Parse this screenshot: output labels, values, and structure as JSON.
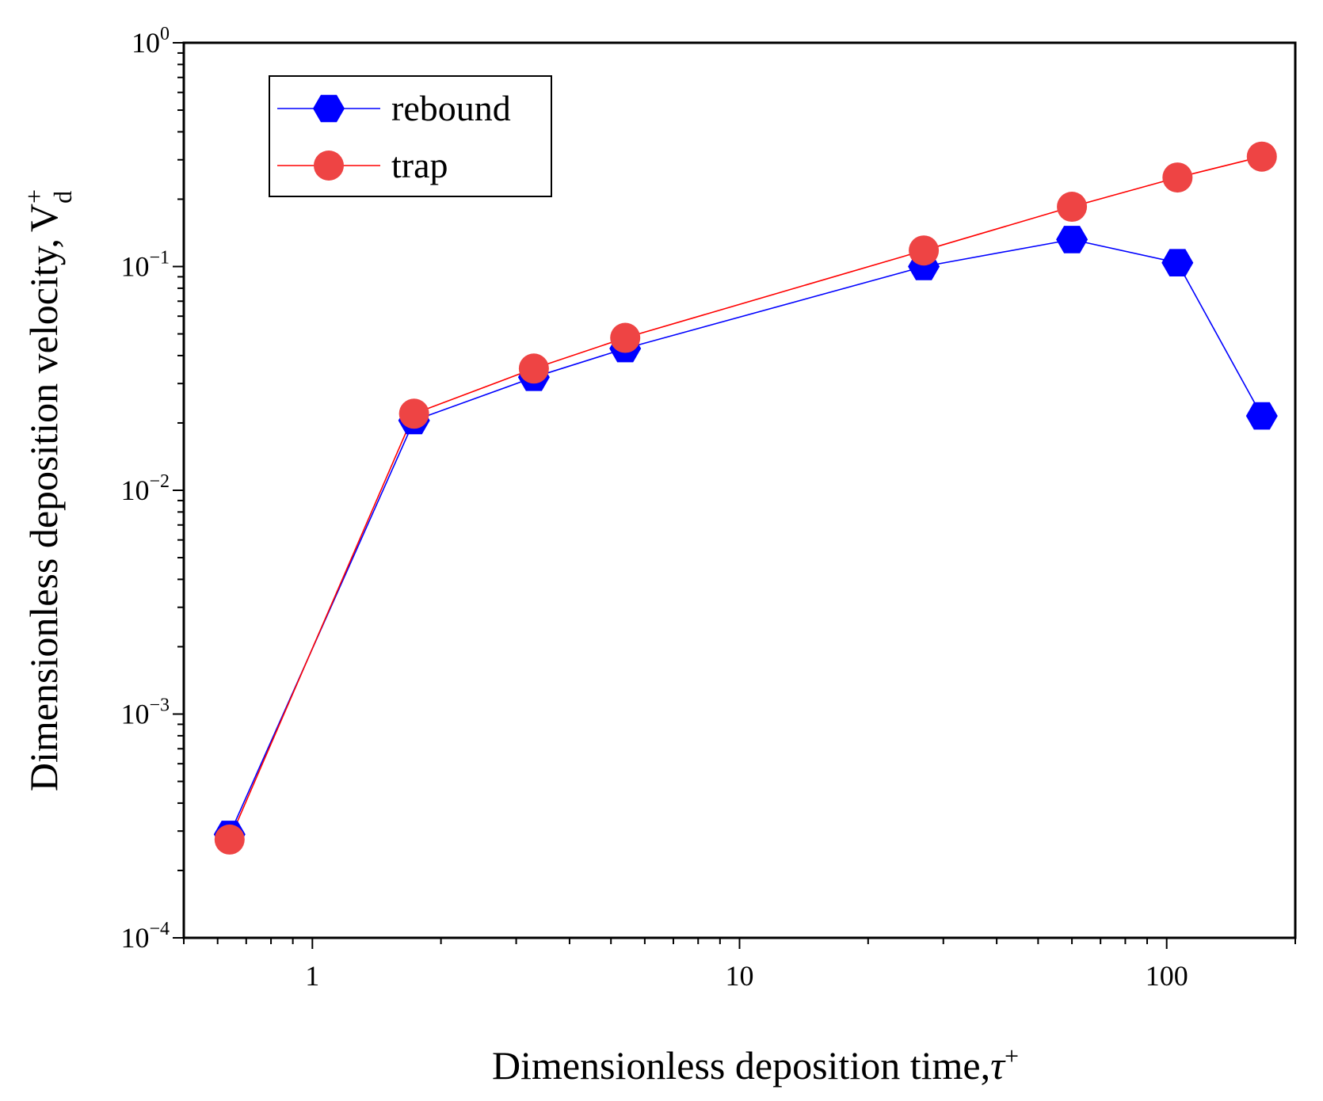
{
  "chart_data": {
    "type": "line",
    "xscale": "log",
    "yscale": "log",
    "xlim": [
      0.5,
      200
    ],
    "ylim": [
      0.0001,
      1
    ],
    "xlabel": "Dimensionless deposition time,",
    "xlabel_symbol": "τ",
    "xlabel_sup": "+",
    "ylabel": "Dimensionless deposition velocity,",
    "ylabel_symbol": "V",
    "ylabel_sup": "+",
    "ylabel_sub": "d",
    "x_ticks": [
      {
        "value": 1,
        "label": "1"
      },
      {
        "value": 10,
        "label": "10"
      },
      {
        "value": 100,
        "label": "100"
      }
    ],
    "y_ticks": [
      {
        "value": 0.0001,
        "base": "10",
        "exp": "−4"
      },
      {
        "value": 0.001,
        "base": "10",
        "exp": "−3"
      },
      {
        "value": 0.01,
        "base": "10",
        "exp": "−2"
      },
      {
        "value": 0.1,
        "base": "10",
        "exp": "−1"
      },
      {
        "value": 1,
        "base": "10",
        "exp": "0"
      }
    ],
    "legend_position": "top-left",
    "series": [
      {
        "name": "rebound",
        "color": "#0000ff",
        "marker": "hexagon",
        "x": [
          0.64,
          1.73,
          3.3,
          5.4,
          27,
          60,
          106,
          167
        ],
        "values": [
          0.00029,
          0.0205,
          0.032,
          0.043,
          0.1,
          0.132,
          0.104,
          0.0215
        ]
      },
      {
        "name": "trap",
        "color": "#ff0000",
        "marker_color": "#ee4444",
        "marker": "circle",
        "x": [
          0.64,
          1.73,
          3.3,
          5.4,
          27,
          60,
          106,
          167
        ],
        "values": [
          0.000275,
          0.022,
          0.035,
          0.048,
          0.118,
          0.185,
          0.25,
          0.31
        ]
      }
    ]
  }
}
